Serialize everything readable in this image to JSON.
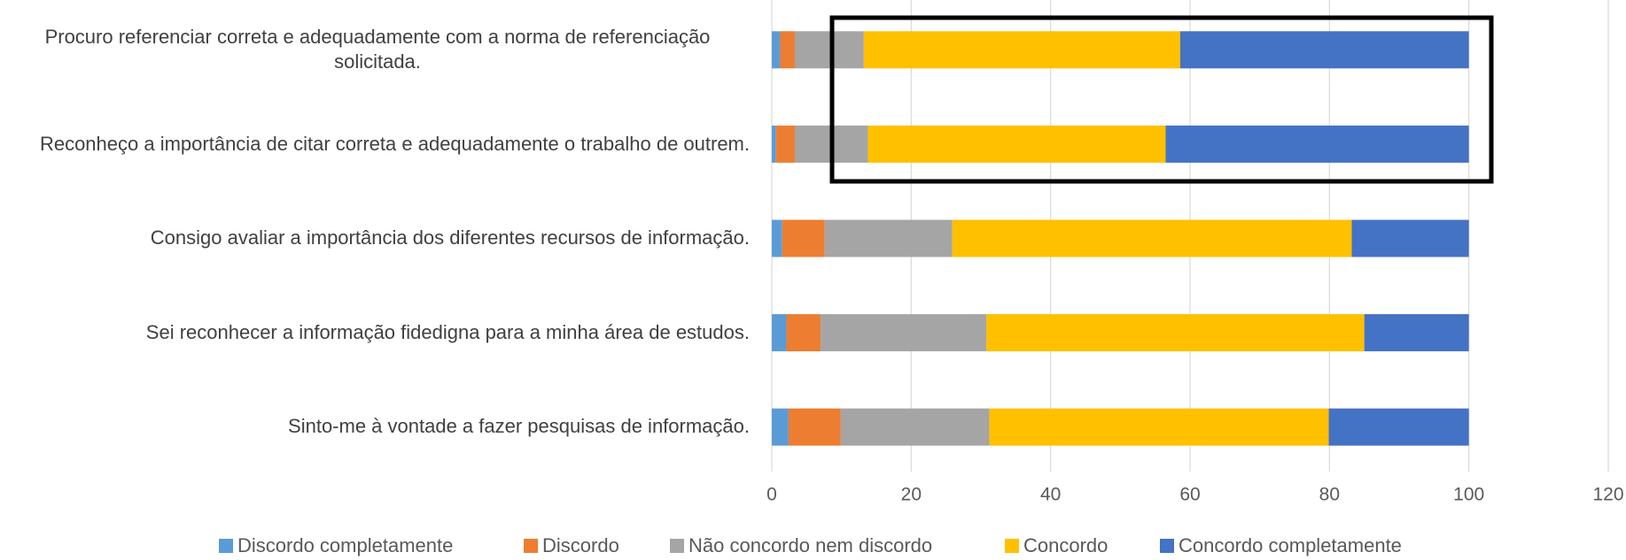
{
  "chart_data": {
    "type": "stacked_barh",
    "categories": [
      "Procuro referenciar correta e adequadamente com a norma de referenciação solicitada.",
      "Reconheço a importância de citar correta e adequadamente o trabalho de outrem.",
      "Consigo avaliar a importância dos diferentes recursos de informação.",
      "Sei reconhecer a informação fidedigna para a minha área de estudos.",
      "Sinto-me à vontade a fazer pesquisas de informação."
    ],
    "series": [
      {
        "name": "Discordo completamente",
        "color": "#5b9bd5",
        "values": [
          1.2,
          0.6,
          1.5,
          2.1,
          2.4
        ]
      },
      {
        "name": "Discordo",
        "color": "#ed7d31",
        "values": [
          2.1,
          2.7,
          6.1,
          4.9,
          7.5
        ]
      },
      {
        "name": "Não concordo nem discordo",
        "color": "#a5a5a5",
        "values": [
          9.9,
          10.5,
          18.3,
          23.8,
          21.3
        ]
      },
      {
        "name": "Concordo",
        "color": "#ffc000",
        "values": [
          45.4,
          42.7,
          57.3,
          54.2,
          48.7
        ]
      },
      {
        "name": "Concordo completamente",
        "color": "#4472c4",
        "values": [
          41.4,
          43.5,
          16.8,
          15.0,
          20.1
        ]
      }
    ],
    "xlim": [
      0,
      120
    ],
    "xticks": [
      0,
      20,
      40,
      60,
      80,
      100,
      120
    ],
    "grid": true,
    "legend": "bottom"
  }
}
